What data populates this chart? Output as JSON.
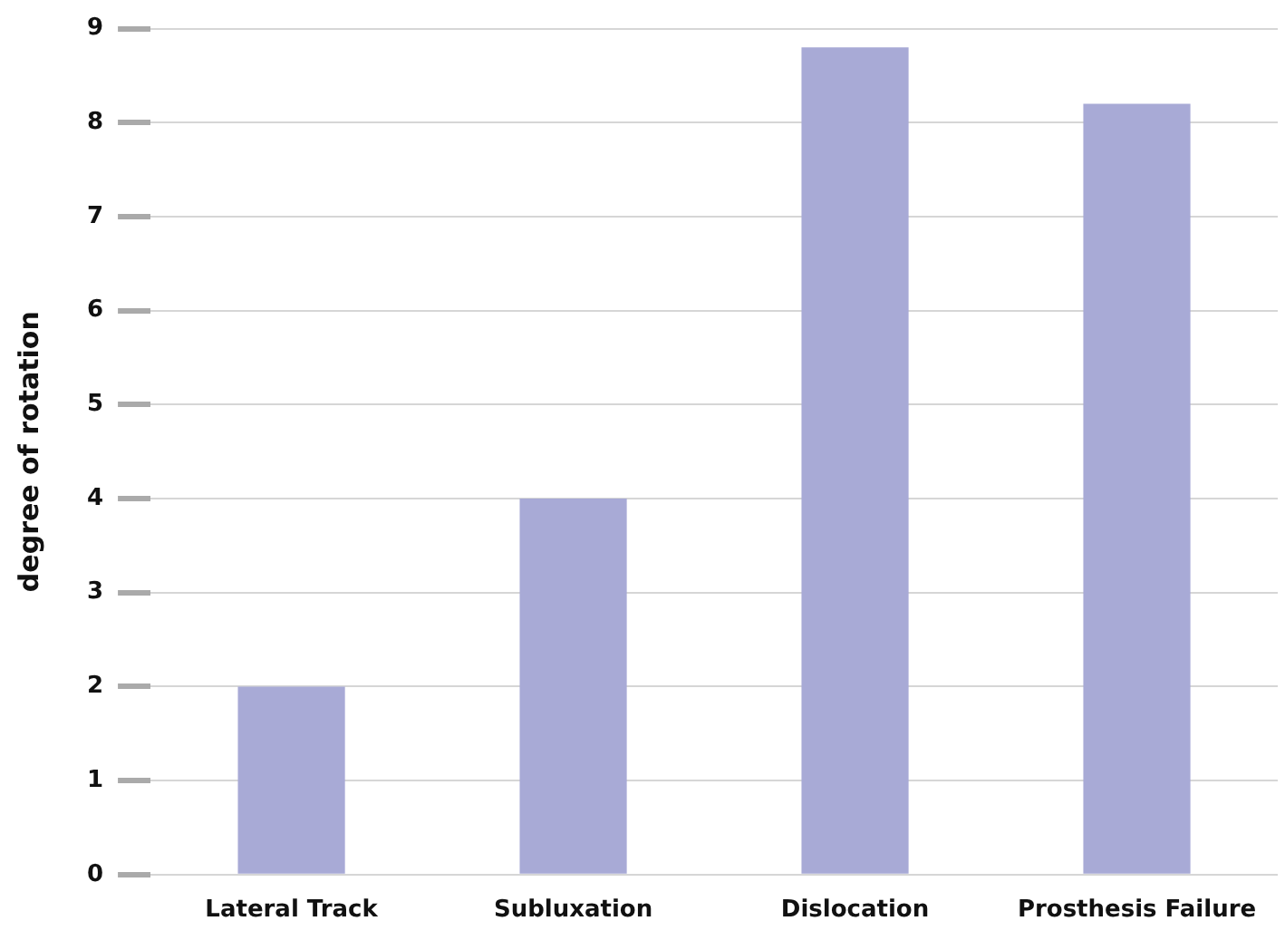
{
  "chart_data": {
    "type": "bar",
    "ylabel": "degree of rotation",
    "categories": [
      "Lateral Track",
      "Subluxation",
      "Dislocation",
      "Prosthesis Failure"
    ],
    "values": [
      2,
      4,
      8.8,
      8.2
    ],
    "color": "#a8aad6",
    "ylim": [
      0,
      9
    ],
    "yticks": [
      0,
      1,
      2,
      3,
      4,
      5,
      6,
      7,
      8,
      9
    ],
    "grid": "y"
  }
}
